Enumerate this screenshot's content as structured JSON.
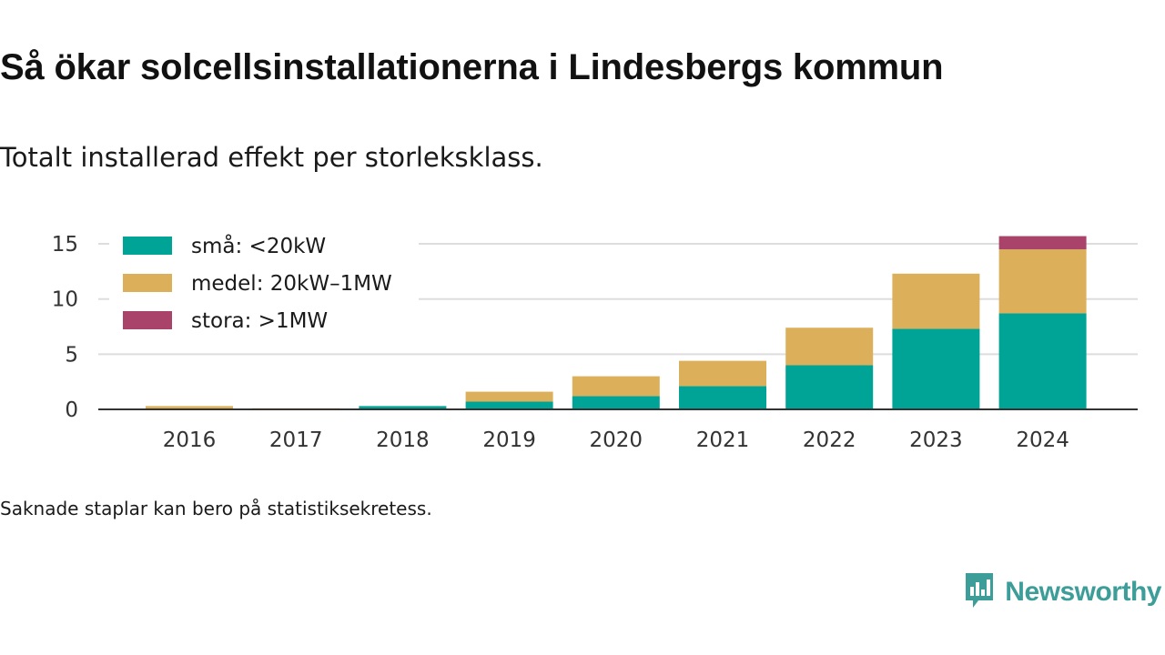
{
  "title": "Så ökar solcellsinstallationerna i Lindesbergs kommun",
  "subtitle": "Totalt installerad effekt per storleksklass.",
  "footnote": "Saknade staplar kan bero på statistiksekretess.",
  "brand": {
    "name": "Newsworthy",
    "logo_icon": "newsworthy-logo-icon",
    "color": "#3d9d99"
  },
  "chart_data": {
    "type": "bar",
    "stacked": true,
    "categories": [
      "2016",
      "2017",
      "2018",
      "2019",
      "2020",
      "2021",
      "2022",
      "2023",
      "2024"
    ],
    "series": [
      {
        "name": "små: <20kW",
        "color": "#00a497",
        "values": [
          0.0,
          0.0,
          0.3,
          0.7,
          1.2,
          2.1,
          4.0,
          7.3,
          8.7
        ]
      },
      {
        "name": "medel: 20kW–1MW",
        "color": "#dcb05a",
        "values": [
          0.3,
          0.1,
          0.0,
          0.9,
          1.8,
          2.3,
          3.4,
          5.0,
          5.8
        ]
      },
      {
        "name": "stora: >1MW",
        "color": "#a9436a",
        "values": [
          0.0,
          0.0,
          0.0,
          0.0,
          0.0,
          0.0,
          0.0,
          0.0,
          1.2
        ]
      }
    ],
    "yticks": [
      0,
      5,
      10,
      15
    ],
    "ylim": [
      0,
      16.5
    ],
    "grid": true,
    "legend": "top-left",
    "xlabel": "",
    "ylabel": ""
  }
}
